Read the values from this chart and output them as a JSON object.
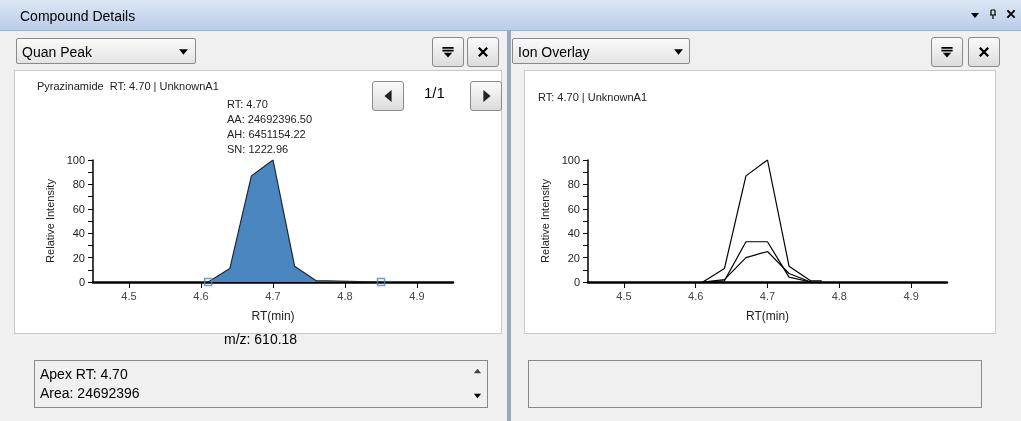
{
  "chart_data": [
    {
      "type": "area",
      "title": "Pyrazinamide  RT: 4.70 | UnknownA1",
      "xlabel": "RT(min)",
      "ylabel": "Relative Intensity",
      "annotations": [
        "Compound Details",
        "Quan Peak",
        "1/1",
        "RT: 4.70",
        "AA: 24692396.50",
        "AH: 6451154.22",
        "SN: 1222.96",
        "m/z: 610.18",
        "Apex RT: 4.70",
        "Area: 24692396"
      ],
      "xlim": [
        4.45,
        4.95
      ],
      "xticks": [
        4.5,
        4.6,
        4.7,
        4.8,
        4.9
      ],
      "ylim": [
        0,
        100
      ],
      "yticks": [
        0,
        {
          "value": 10,
          "label": null
        },
        20,
        {
          "value": 30,
          "label": null
        },
        40,
        {
          "value": 50,
          "label": null
        },
        60,
        {
          "value": 70,
          "label": null
        },
        80,
        {
          "value": 90,
          "label": null
        },
        100
      ],
      "grid": false,
      "marker": "none",
      "series": [
        {
          "color": "#4a86bf",
          "x": [
            4.61,
            4.64,
            4.67,
            4.7,
            4.73,
            4.76,
            4.775,
            4.85
          ],
          "values": [
            0,
            11,
            87,
            100,
            13,
            1,
            1,
            0
          ]
        },
        {
          "type": "scatter",
          "marker": "square",
          "color": "#4a86bf",
          "x": [
            4.61,
            4.85
          ],
          "values": [
            0,
            0
          ]
        }
      ]
    },
    {
      "type": "line",
      "title": "RT: 4.70 | UnknownA1",
      "xlabel": "RT(min)",
      "ylabel": "Relative Intensity",
      "annotations": [
        "Ion Overlay"
      ],
      "xlim": [
        4.45,
        4.95
      ],
      "xticks": [
        4.5,
        4.6,
        4.7,
        4.8,
        4.9
      ],
      "ylim": [
        0,
        100
      ],
      "yticks": [
        0,
        {
          "value": 10,
          "label": null
        },
        20,
        {
          "value": 30,
          "label": null
        },
        40,
        {
          "value": 50,
          "label": null
        },
        60,
        {
          "value": 70,
          "label": null
        },
        80,
        {
          "value": 90,
          "label": null
        },
        100
      ],
      "grid": false,
      "marker": "none",
      "line_style": "solid",
      "series": [
        {
          "color": "#000000",
          "x": [
            4.61,
            4.64,
            4.67,
            4.7,
            4.73,
            4.76,
            4.775
          ],
          "values": [
            0,
            11,
            87,
            100,
            13,
            1,
            1
          ]
        },
        {
          "color": "#000000",
          "x": [
            4.61,
            4.64,
            4.67,
            4.7,
            4.73,
            4.76
          ],
          "values": [
            0,
            1,
            33,
            33,
            4,
            0
          ]
        },
        {
          "color": "#000000",
          "x": [
            4.61,
            4.64,
            4.67,
            4.7,
            4.73,
            4.76
          ],
          "values": [
            0,
            2,
            20,
            25,
            7,
            0
          ]
        }
      ]
    }
  ]
}
